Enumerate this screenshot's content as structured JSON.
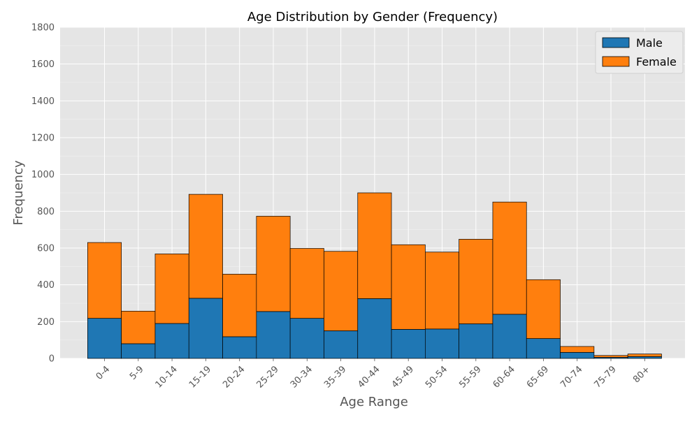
{
  "chart_data": {
    "type": "bar",
    "stacked": true,
    "title": "Age Distribution by Gender (Frequency)",
    "xlabel": "Age Range",
    "ylabel": "Frequency",
    "ylim": [
      0,
      1800
    ],
    "yticks": [
      0,
      200,
      400,
      600,
      800,
      1000,
      1200,
      1400,
      1600,
      1800
    ],
    "grid": true,
    "legend_position": "top-right",
    "categories": [
      "0-4",
      "5-9",
      "10-14",
      "15-19",
      "20-24",
      "25-29",
      "30-34",
      "35-39",
      "40-44",
      "45-49",
      "50-54",
      "55-59",
      "60-64",
      "65-69",
      "70-74",
      "75-79",
      "80+"
    ],
    "series": [
      {
        "name": "Male",
        "color": "#1f77b4",
        "values": [
          218,
          80,
          190,
          327,
          118,
          255,
          218,
          150,
          325,
          158,
          160,
          188,
          240,
          108,
          33,
          6,
          10
        ]
      },
      {
        "name": "Female",
        "color": "#ff7f0e",
        "values": [
          412,
          177,
          378,
          565,
          340,
          518,
          380,
          432,
          575,
          460,
          418,
          460,
          610,
          320,
          32,
          10,
          14
        ]
      }
    ]
  }
}
